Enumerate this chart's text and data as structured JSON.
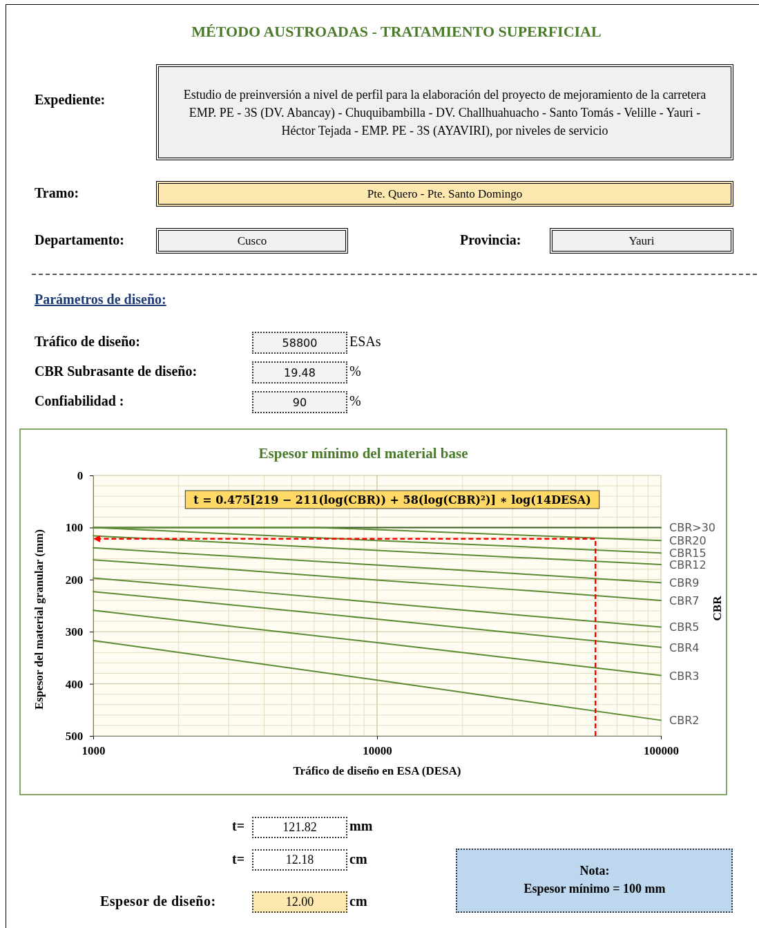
{
  "chart_data": {
    "type": "line",
    "title": "Espesor mínimo del material base",
    "xlabel": "Tráfico de diseño en ESA (DESA)",
    "ylabel": "Espesor del material granular (mm)",
    "y2label": "CBR",
    "log": "x",
    "xlim": [
      1000,
      100000
    ],
    "xticks": [
      1000,
      10000,
      100000
    ],
    "ylim": [
      500,
      0
    ],
    "yticks": [
      0,
      100,
      200,
      300,
      400,
      500
    ],
    "grid": true,
    "series": [
      {
        "name": "CBR>30",
        "color": "#3b5e23",
        "x": [
          1000,
          100000
        ],
        "values": [
          100,
          100
        ]
      },
      {
        "name": "CBR20",
        "color": "#5a8a32",
        "x": [
          1000,
          6100,
          10000,
          30000,
          100000
        ],
        "values": [
          100,
          100,
          104,
          114,
          125
        ]
      },
      {
        "name": "CBR15",
        "color": "#5a8a32",
        "x": [
          1000,
          3000,
          10000,
          30000,
          100000
        ],
        "values": [
          100,
          112,
          125,
          136,
          149
        ]
      },
      {
        "name": "CBR12",
        "color": "#5a8a32",
        "x": [
          1000,
          3000,
          10000,
          30000,
          100000
        ],
        "values": [
          116,
          129,
          144,
          157,
          171
        ]
      },
      {
        "name": "CBR9",
        "color": "#5a8a32",
        "x": [
          1000,
          3000,
          10000,
          30000,
          100000
        ],
        "values": [
          139,
          155,
          172,
          188,
          206
        ]
      },
      {
        "name": "CBR7",
        "color": "#5a8a32",
        "x": [
          1000,
          3000,
          10000,
          30000,
          100000
        ],
        "values": [
          162,
          180,
          201,
          219,
          240
        ]
      },
      {
        "name": "CBR5",
        "color": "#5a8a32",
        "x": [
          1000,
          3000,
          10000,
          30000,
          100000
        ],
        "values": [
          197,
          219,
          244,
          267,
          291
        ]
      },
      {
        "name": "CBR4",
        "color": "#5a8a32",
        "x": [
          1000,
          3000,
          10000,
          30000,
          100000
        ],
        "values": [
          223,
          248,
          276,
          302,
          330
        ]
      },
      {
        "name": "CBR3",
        "color": "#5a8a32",
        "x": [
          1000,
          3000,
          10000,
          30000,
          100000
        ],
        "values": [
          259,
          289,
          321,
          351,
          384
        ]
      },
      {
        "name": "CBR2",
        "color": "#5a8a32",
        "x": [
          1000,
          3000,
          10000,
          30000,
          100000
        ],
        "values": [
          317,
          353,
          393,
          430,
          470
        ]
      }
    ],
    "annotations": [
      "MÉTODO AUSTROADAS - TRATAMIENTO SUPERFICIAL",
      "Expediente:",
      "Estudio de preinversión a nivel de perfil para la elaboración del proyecto de mejoramiento de la carretera EMP. PE - 3S (DV. Abancay) - Chuquibambilla - DV. Challhuahuacho - Santo Tomás - Velille - Yauri - Héctor Tejada - EMP. PE - 3S (AYAVIRI), por niveles de servicio",
      "Tramo:",
      "Pte. Quero - Pte. Santo Domingo",
      "Departamento:",
      "Cusco",
      "Provincia:",
      "Yauri",
      "Parámetros de diseño:",
      "Tráfico de diseño:",
      "58800",
      "ESAs",
      "CBR Subrasante de diseño:",
      "19.48",
      "%",
      "Confiabilidad :",
      "90",
      "%",
      "t = 0.475[219 − 211(log(CBR)) + 58(log(CBR)²)] ∗ log(14DESA)",
      "t=",
      "121.82",
      "mm",
      "t=",
      "12.18",
      "cm",
      "Espesor de diseño:",
      "12.00",
      "cm",
      "Nota:",
      "Espesor mínimo = 100 mm"
    ]
  }
}
